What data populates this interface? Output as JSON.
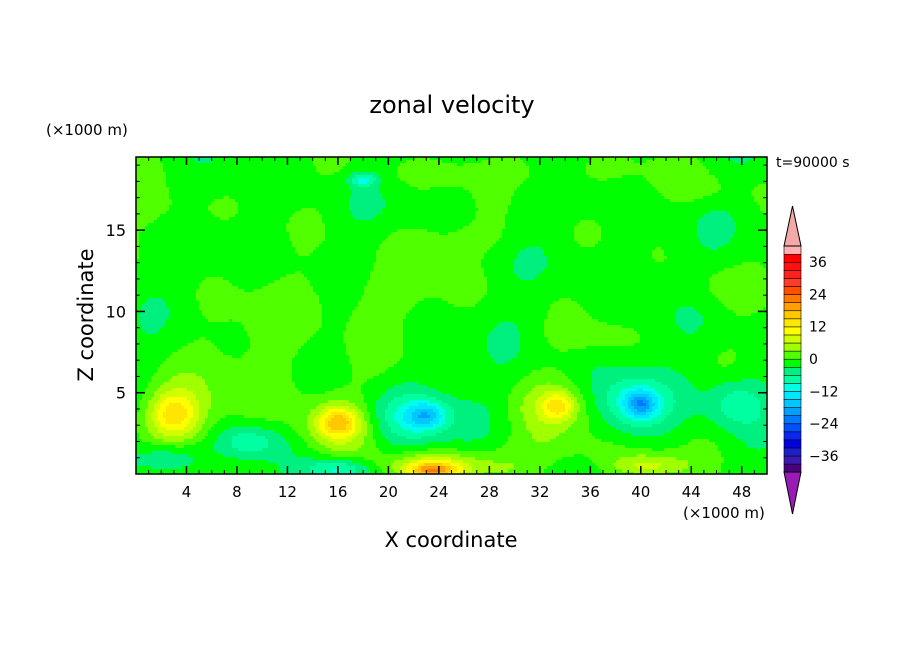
{
  "chart_data": {
    "type": "heatmap",
    "title": "zonal velocity",
    "xlabel": "X coordinate",
    "ylabel": "Z coordinate",
    "x_unit": "(×1000 m)",
    "y_unit": "(×1000 m)",
    "time_label": "t=90000 s",
    "xlim": [
      0,
      50
    ],
    "ylim": [
      0,
      19.5
    ],
    "x_ticks": [
      4,
      8,
      12,
      16,
      20,
      24,
      28,
      32,
      36,
      40,
      44,
      48
    ],
    "y_ticks": [
      5,
      10,
      15
    ],
    "colorbar": {
      "levels": [
        -42,
        -39,
        -36,
        -33,
        -30,
        -27,
        -24,
        -21,
        -18,
        -15,
        -12,
        -9,
        -6,
        -3,
        0,
        3,
        6,
        9,
        12,
        15,
        18,
        21,
        24,
        27,
        30,
        33,
        36,
        39,
        42
      ],
      "colors": [
        "#4b0082",
        "#3a1ab0",
        "#1f1fc8",
        "#0000e0",
        "#0a28f0",
        "#0050ff",
        "#0078ff",
        "#00a0ff",
        "#00c8ff",
        "#00e6ff",
        "#00ffe6",
        "#00ffa0",
        "#00f080",
        "#00ff00",
        "#50ff00",
        "#a0ff00",
        "#d2ff00",
        "#ffff00",
        "#ffe600",
        "#ffc800",
        "#ffa000",
        "#ff7800",
        "#ff5000",
        "#ff3c28",
        "#ff2020",
        "#ff1010",
        "#ff0000",
        "#ffb0b0"
      ],
      "tick_labels": [
        "36",
        "24",
        "12",
        "0",
        "−12",
        "−24",
        "−36"
      ],
      "tick_values": [
        36,
        24,
        12,
        0,
        -12,
        -24,
        -36
      ],
      "over_color": "#f4a8a8",
      "under_color": "#9a1ab4"
    },
    "base_value": -1.5,
    "features": [
      {
        "x": 3,
        "z": 3.6,
        "rx": 3.2,
        "rz": 2.2,
        "v": 6
      },
      {
        "x": 3,
        "z": 3.7,
        "rx": 1.8,
        "rz": 1.3,
        "v": 9
      },
      {
        "x": 16,
        "z": 2.8,
        "rx": 3.2,
        "rz": 1.8,
        "v": 6
      },
      {
        "x": 16,
        "z": 3.2,
        "rx": 1.6,
        "rz": 0.9,
        "v": 12
      },
      {
        "x": 33,
        "z": 3.9,
        "rx": 3.0,
        "rz": 1.8,
        "v": 6
      },
      {
        "x": 33.5,
        "z": 4.2,
        "rx": 1.2,
        "rz": 0.8,
        "v": 9
      },
      {
        "x": 24,
        "z": 0.5,
        "rx": 4.8,
        "rz": 0.9,
        "v": 9
      },
      {
        "x": 23.5,
        "z": 0.2,
        "rx": 2.0,
        "rz": 0.5,
        "v": 15
      },
      {
        "x": 40.5,
        "z": 0.5,
        "rx": 3.0,
        "rz": 0.8,
        "v": 9
      },
      {
        "x": 21.5,
        "z": 3.4,
        "rx": 3.6,
        "rz": 1.7,
        "v": -8
      },
      {
        "x": 23,
        "z": 3.6,
        "rx": 1.5,
        "rz": 0.8,
        "v": -10
      },
      {
        "x": 39.5,
        "z": 4.3,
        "rx": 2.8,
        "rz": 1.7,
        "v": -9
      },
      {
        "x": 40,
        "z": 4.3,
        "rx": 1.2,
        "rz": 0.8,
        "v": -11
      },
      {
        "x": 47.5,
        "z": 4.4,
        "rx": 2.5,
        "rz": 1.6,
        "v": -7
      },
      {
        "x": 2.5,
        "z": 1.0,
        "rx": 2.5,
        "rz": 1.0,
        "v": -7
      },
      {
        "x": 16,
        "z": 0.3,
        "rx": 2.5,
        "rz": 0.7,
        "v": -10
      },
      {
        "x": 9,
        "z": 2.0,
        "rx": 2.5,
        "rz": 1.0,
        "v": -7
      },
      {
        "x": 18,
        "z": 18.1,
        "rx": 1.0,
        "rz": 0.4,
        "v": -9
      },
      {
        "x": 11,
        "z": 6.5,
        "rx": 8.0,
        "rz": 4.5,
        "v": 2.5
      },
      {
        "x": 19,
        "z": 11.0,
        "rx": 7.0,
        "rz": 2.0,
        "v": 2.5
      },
      {
        "x": 30,
        "z": 18.6,
        "rx": 12.0,
        "rz": 1.0,
        "v": 2.5
      },
      {
        "x": 3,
        "z": 16.0,
        "rx": 4.0,
        "rz": 1.5,
        "v": 2.5
      },
      {
        "x": 25,
        "z": 14.5,
        "rx": 6.0,
        "rz": 1.2,
        "v": 2.5
      },
      {
        "x": 36,
        "z": 8.5,
        "rx": 3.0,
        "rz": 1.0,
        "v": 2.5
      },
      {
        "x": 45,
        "z": 17.5,
        "rx": 4.0,
        "rz": 1.0,
        "v": 2.5
      },
      {
        "x": 46,
        "z": 11.5,
        "rx": 3.0,
        "rz": 1.5,
        "v": 2.5
      },
      {
        "x": 34,
        "z": 1.5,
        "rx": 5.0,
        "rz": 1.2,
        "v": 3
      }
    ]
  }
}
